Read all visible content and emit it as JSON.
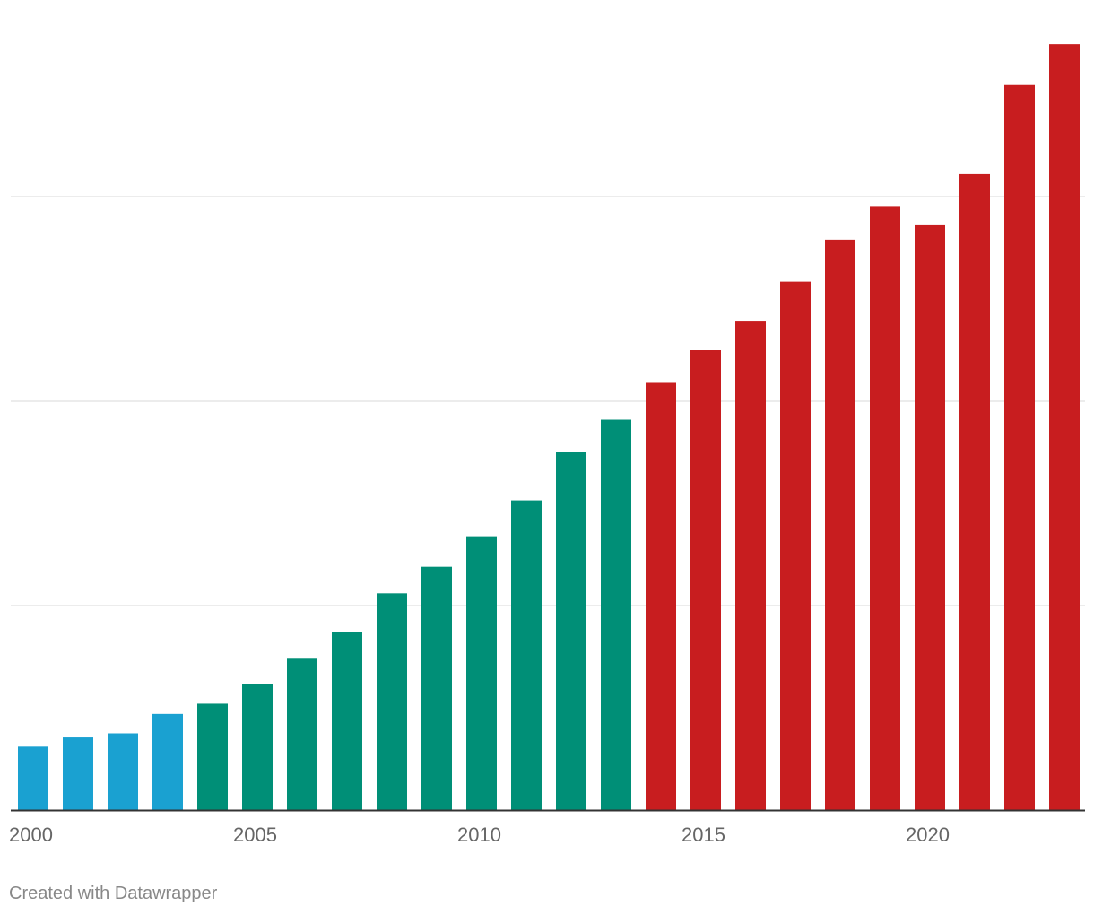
{
  "chart_data": {
    "type": "bar",
    "title": "",
    "xlabel": "",
    "ylabel": "",
    "ylim": [
      0,
      375
    ],
    "gridlines": [
      100,
      200,
      300
    ],
    "categories": [
      "2000",
      "2001",
      "2002",
      "2003",
      "2004",
      "2005",
      "2006",
      "2007",
      "2008",
      "2009",
      "2010",
      "2011",
      "2012",
      "2013",
      "2014",
      "2015",
      "2016",
      "2017",
      "2018",
      "2019",
      "2020",
      "2021",
      "2022",
      "2023"
    ],
    "values": [
      31,
      35.5,
      37.5,
      47,
      52,
      61.5,
      74,
      87,
      106,
      119,
      133.5,
      151.5,
      175,
      191,
      209,
      225,
      239,
      258.5,
      279,
      295,
      286,
      311,
      354.5,
      374.5
    ],
    "bar_groups": [
      0,
      0,
      0,
      0,
      1,
      1,
      1,
      1,
      1,
      1,
      1,
      1,
      1,
      1,
      2,
      2,
      2,
      2,
      2,
      2,
      2,
      2,
      2,
      2
    ],
    "x_tick_labels": [
      "2000",
      "2005",
      "2010",
      "2015",
      "2020"
    ],
    "x_tick_indices": [
      0,
      5,
      10,
      15,
      20
    ]
  },
  "colors": {
    "group_colors": [
      "#1aa1d1",
      "#008f77",
      "#c81d1f"
    ],
    "grid": "#e6e6e6",
    "axis": "#333333"
  },
  "footer": {
    "credit": "Created with Datawrapper"
  }
}
